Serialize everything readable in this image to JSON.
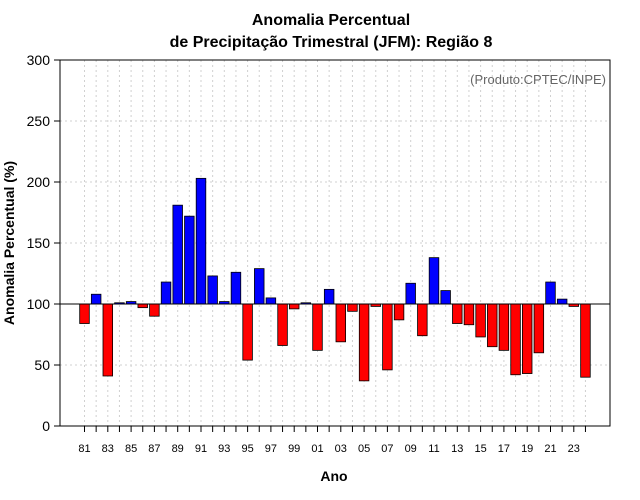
{
  "chart_data": {
    "type": "bar",
    "title_line1": "Anomalia Percentual",
    "title_line2": "de Precipitação Trimestral (JFM): Região 8",
    "xlabel": "Ano",
    "ylabel": "Anomalia Percentual (%)",
    "credit": "(Produto:CPTEC/INPE)",
    "ylim": [
      0,
      300
    ],
    "yticks": [
      "0",
      "50",
      "100",
      "150",
      "200",
      "250",
      "300"
    ],
    "baseline": 100,
    "grid": true,
    "colors": {
      "above": "#0000ff",
      "below": "#ff0000",
      "edge": "#000000",
      "grid": "#d0d0d0"
    },
    "categories": [
      "81",
      "82",
      "83",
      "84",
      "85",
      "86",
      "87",
      "88",
      "89",
      "90",
      "91",
      "92",
      "93",
      "94",
      "95",
      "96",
      "97",
      "98",
      "99",
      "00",
      "01",
      "02",
      "03",
      "04",
      "05",
      "06",
      "07",
      "08",
      "09",
      "10",
      "11",
      "12",
      "13",
      "14",
      "15",
      "16",
      "17",
      "18",
      "19",
      "20",
      "21",
      "22",
      "23",
      "24"
    ],
    "xtick_labels": [
      "81",
      "83",
      "85",
      "87",
      "89",
      "91",
      "93",
      "95",
      "97",
      "99",
      "01",
      "03",
      "05",
      "07",
      "09",
      "11",
      "13",
      "15",
      "17",
      "19",
      "21",
      "23"
    ],
    "values": [
      84,
      108,
      41,
      101,
      102,
      97,
      90,
      118,
      181,
      172,
      203,
      123,
      102,
      126,
      54,
      129,
      105,
      66,
      96,
      101,
      62,
      112,
      69,
      94,
      37,
      98,
      46,
      87,
      117,
      74,
      138,
      111,
      84,
      83,
      73,
      65,
      62,
      42,
      43,
      60,
      118,
      104,
      98,
      40
    ]
  }
}
